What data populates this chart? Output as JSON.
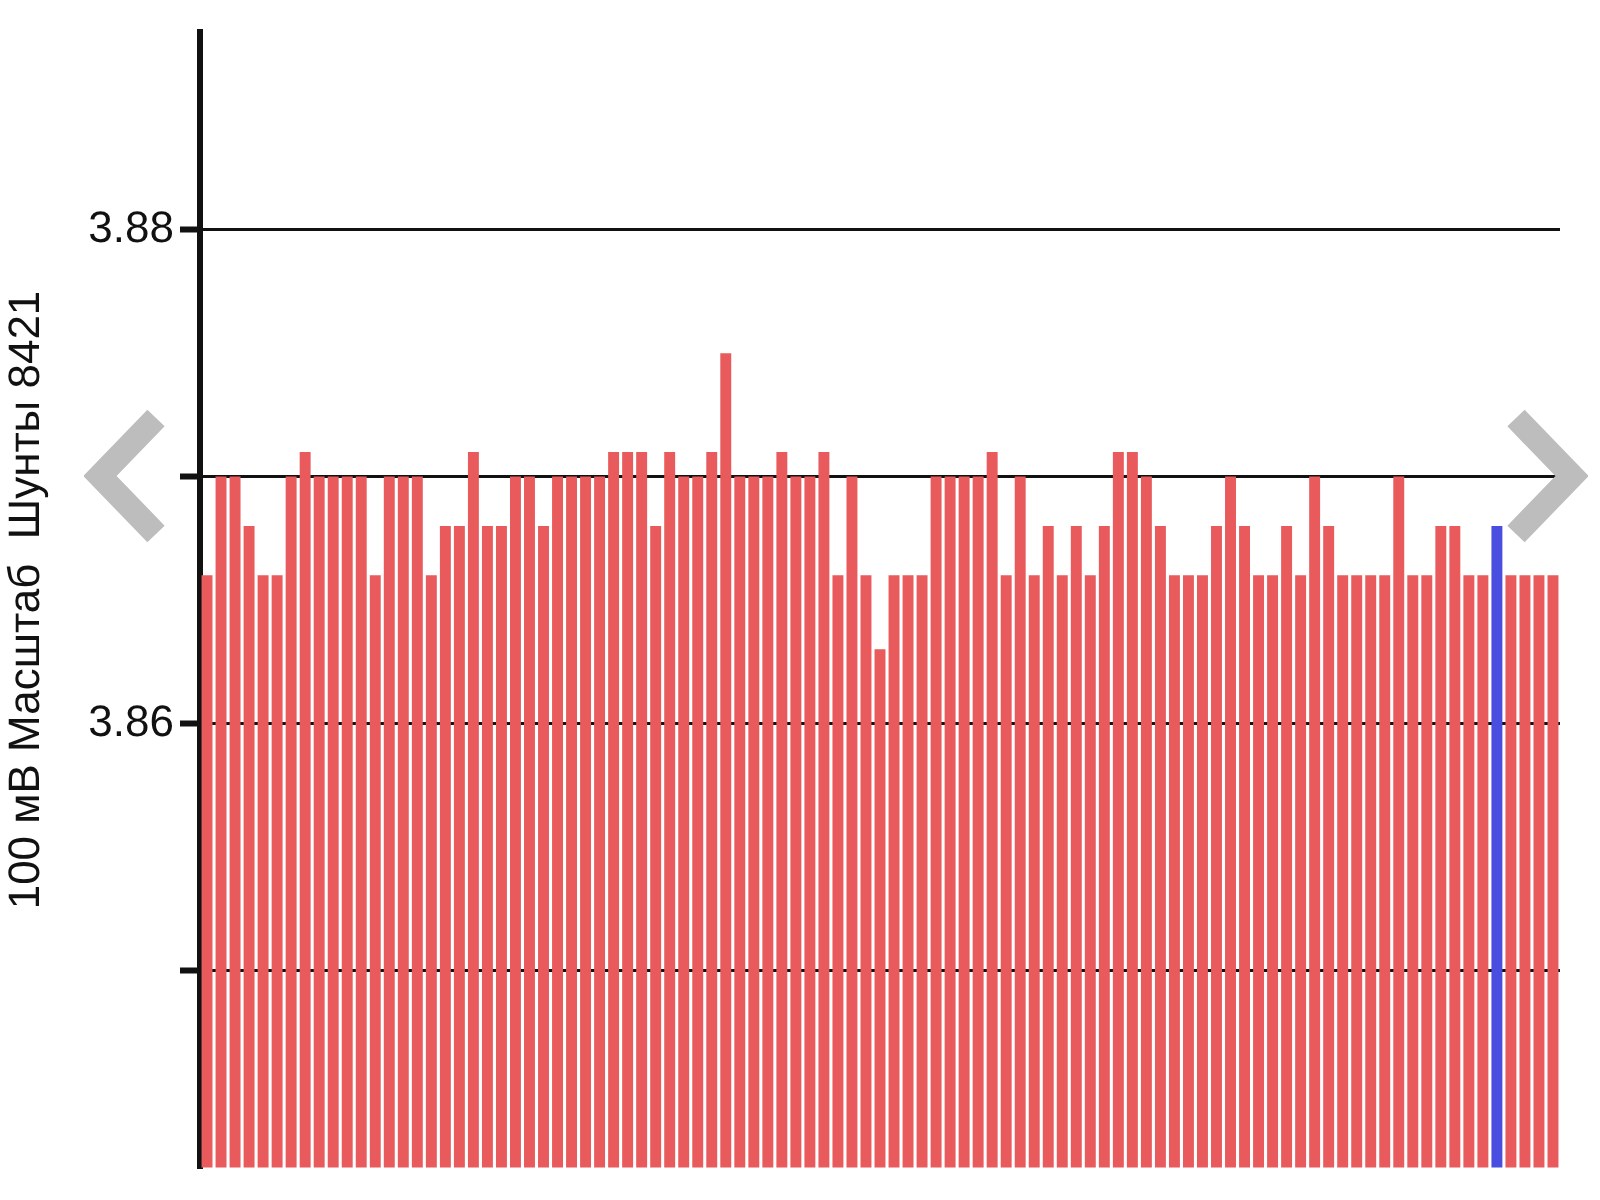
{
  "chart_data": {
    "type": "bar",
    "ylabel": "100 мВ Масштаб  Шунты 8421",
    "categories": [
      null,
      null,
      null,
      null,
      null,
      null,
      null,
      null,
      null,
      null,
      null,
      null,
      null,
      null,
      null,
      null,
      null,
      null,
      null,
      null,
      null,
      null,
      null,
      null,
      null,
      null,
      null,
      null,
      null,
      null,
      null,
      null,
      null,
      null,
      null,
      null,
      null,
      null,
      null,
      null,
      null,
      null,
      null,
      null,
      null,
      null,
      null,
      null,
      null,
      null,
      null,
      null,
      null,
      null,
      null,
      null,
      null,
      null,
      null,
      null,
      null,
      null,
      null,
      null,
      null,
      null,
      null,
      null,
      null,
      null,
      null,
      null,
      null,
      null,
      null,
      null,
      null,
      null,
      null,
      null,
      null,
      null,
      null,
      null,
      null,
      null,
      null,
      null,
      null,
      null,
      null,
      null,
      null,
      null,
      null,
      null,
      null
    ],
    "values": [
      3.866,
      3.87,
      3.87,
      3.868,
      3.866,
      3.866,
      3.87,
      3.871,
      3.87,
      3.87,
      3.87,
      3.87,
      3.866,
      3.87,
      3.87,
      3.87,
      3.866,
      3.868,
      3.868,
      3.871,
      3.868,
      3.868,
      3.87,
      3.87,
      3.868,
      3.87,
      3.87,
      3.87,
      3.87,
      3.871,
      3.871,
      3.871,
      3.868,
      3.871,
      3.87,
      3.87,
      3.871,
      3.875,
      3.87,
      3.87,
      3.87,
      3.871,
      3.87,
      3.87,
      3.871,
      3.866,
      3.87,
      3.866,
      3.863,
      3.866,
      3.866,
      3.866,
      3.87,
      3.87,
      3.87,
      3.87,
      3.871,
      3.866,
      3.87,
      3.866,
      3.868,
      3.866,
      3.868,
      3.866,
      3.868,
      3.871,
      3.871,
      3.87,
      3.868,
      3.866,
      3.866,
      3.866,
      3.868,
      3.87,
      3.868,
      3.866,
      3.866,
      3.868,
      3.866,
      3.87,
      3.868,
      3.866,
      3.866,
      3.866,
      3.866,
      3.87,
      3.866,
      3.866,
      3.868,
      3.868,
      3.866,
      3.866,
      3.868,
      3.866,
      3.866,
      3.866,
      3.866
    ],
    "colors": [
      "#e85a5c",
      "#e85a5c",
      "#e85a5c",
      "#e85a5c",
      "#e85a5c",
      "#e85a5c",
      "#e85a5c",
      "#e85a5c",
      "#e85a5c",
      "#e85a5c",
      "#e85a5c",
      "#e85a5c",
      "#e85a5c",
      "#e85a5c",
      "#e85a5c",
      "#e85a5c",
      "#e85a5c",
      "#e85a5c",
      "#e85a5c",
      "#e85a5c",
      "#e85a5c",
      "#e85a5c",
      "#e85a5c",
      "#e85a5c",
      "#e85a5c",
      "#e85a5c",
      "#e85a5c",
      "#e85a5c",
      "#e85a5c",
      "#e85a5c",
      "#e85a5c",
      "#e85a5c",
      "#e85a5c",
      "#e85a5c",
      "#e85a5c",
      "#e85a5c",
      "#e85a5c",
      "#e85a5c",
      "#e85a5c",
      "#e85a5c",
      "#e85a5c",
      "#e85a5c",
      "#e85a5c",
      "#e85a5c",
      "#e85a5c",
      "#e85a5c",
      "#e85a5c",
      "#e85a5c",
      "#e85a5c",
      "#e85a5c",
      "#e85a5c",
      "#e85a5c",
      "#e85a5c",
      "#e85a5c",
      "#e85a5c",
      "#e85a5c",
      "#e85a5c",
      "#e85a5c",
      "#e85a5c",
      "#e85a5c",
      "#e85a5c",
      "#e85a5c",
      "#e85a5c",
      "#e85a5c",
      "#e85a5c",
      "#e85a5c",
      "#e85a5c",
      "#e85a5c",
      "#e85a5c",
      "#e85a5c",
      "#e85a5c",
      "#e85a5c",
      "#e85a5c",
      "#e85a5c",
      "#e85a5c",
      "#e85a5c",
      "#e85a5c",
      "#e85a5c",
      "#e85a5c",
      "#e85a5c",
      "#e85a5c",
      "#e85a5c",
      "#e85a5c",
      "#e85a5c",
      "#e85a5c",
      "#e85a5c",
      "#e85a5c",
      "#e85a5c",
      "#e85a5c",
      "#e85a5c",
      "#e85a5c",
      "#e85a5c",
      "#4a4ee0",
      "#e85a5c",
      "#e85a5c",
      "#e85a5c",
      "#e85a5c"
    ],
    "ylim": [
      3.842,
      3.888
    ],
    "yticks": [
      3.88,
      {
        "value": 3.87,
        "label": null
      },
      3.86,
      {
        "value": 3.85,
        "label": null
      }
    ],
    "grid": "y"
  }
}
